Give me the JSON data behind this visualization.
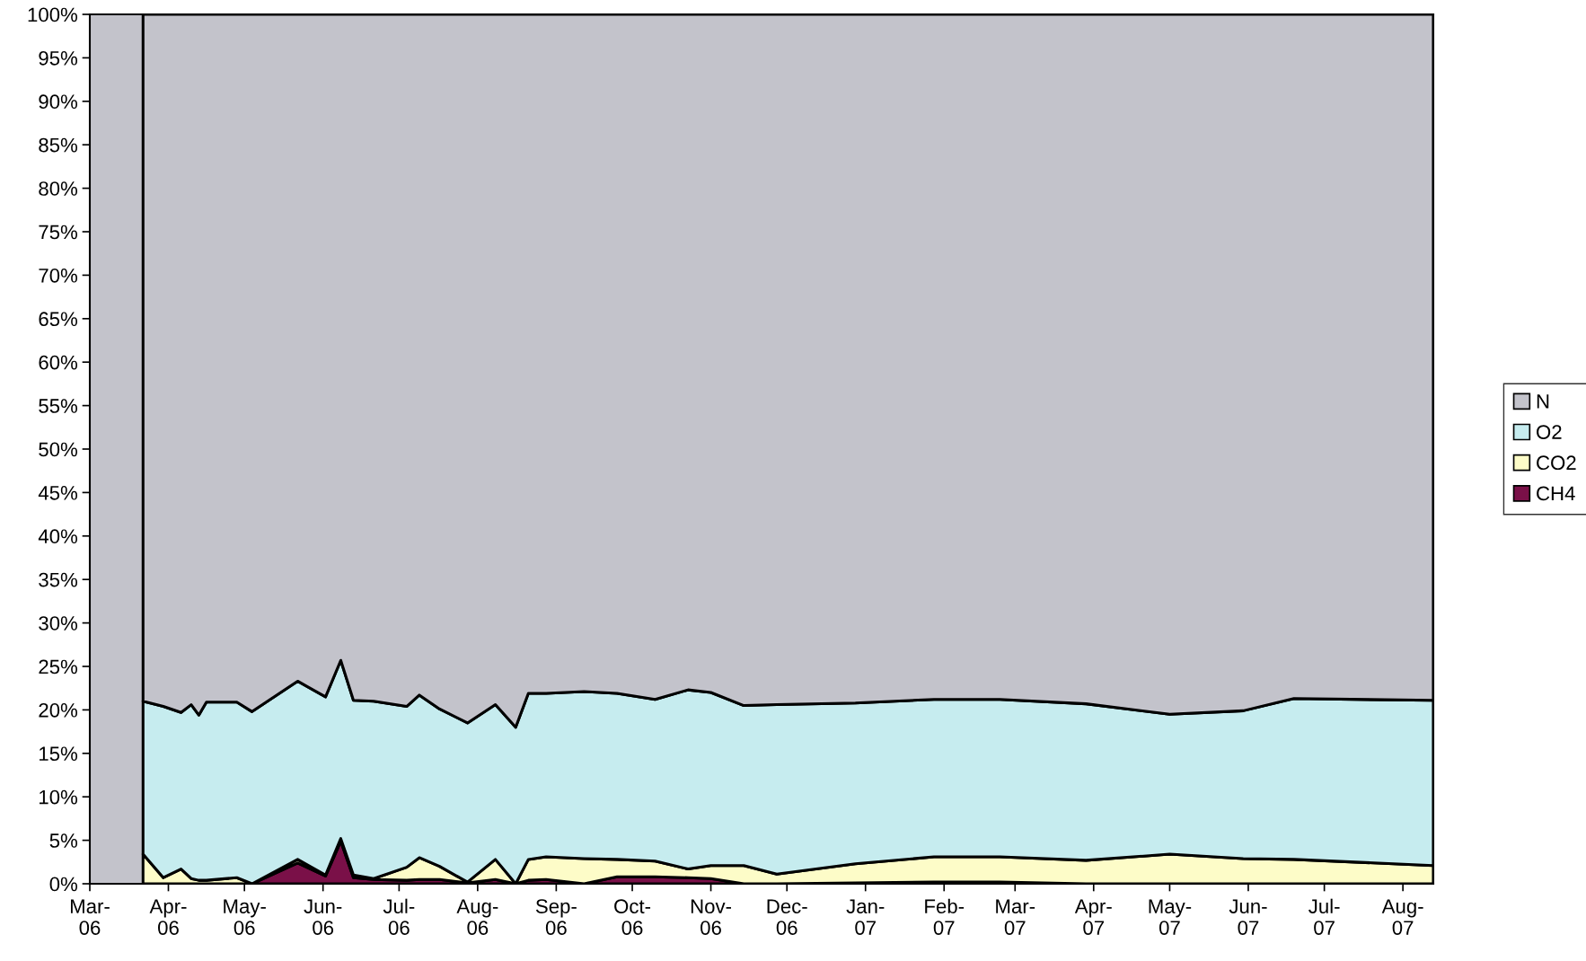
{
  "chart_data": {
    "type": "area",
    "stacked": true,
    "legend": "right",
    "grid": false,
    "x": [
      "2006-03-22",
      "2006-03-30",
      "2006-04-06",
      "2006-04-10",
      "2006-04-13",
      "2006-04-16",
      "2006-04-28",
      "2006-05-04",
      "2006-05-22",
      "2006-06-02",
      "2006-06-08",
      "2006-06-13",
      "2006-06-21",
      "2006-07-04",
      "2006-07-09",
      "2006-07-17",
      "2006-07-28",
      "2006-08-08",
      "2006-08-16",
      "2006-08-21",
      "2006-08-28",
      "2006-09-12",
      "2006-09-25",
      "2006-10-10",
      "2006-10-23",
      "2006-11-01",
      "2006-11-14",
      "2006-11-27",
      "2006-12-28",
      "2007-01-28",
      "2007-02-23",
      "2007-03-29",
      "2007-05-01",
      "2007-05-30",
      "2007-06-19",
      "2007-08-13"
    ],
    "series": [
      {
        "name": "CH4",
        "color": "#7a1048",
        "values": [
          0,
          0,
          0,
          0,
          0,
          0,
          0,
          0,
          2.4,
          0.9,
          4.9,
          0.7,
          0.5,
          0.4,
          0.5,
          0.5,
          0.1,
          0.5,
          0,
          0.4,
          0.5,
          0,
          0.8,
          0.8,
          0.7,
          0.6,
          0,
          0,
          0.1,
          0.2,
          0.2,
          0,
          0,
          0,
          0,
          0
        ]
      },
      {
        "name": "CO2",
        "color": "#fdfcc8",
        "values": [
          3.4,
          0.7,
          1.7,
          0.6,
          0.4,
          0.4,
          0.7,
          0,
          0.4,
          0.1,
          0.3,
          0.3,
          0.1,
          1.5,
          2.5,
          1.5,
          0.1,
          2.3,
          0,
          2.4,
          2.6,
          2.9,
          2.0,
          1.8,
          1.0,
          1.5,
          2.1,
          1.1,
          2.2,
          2.9,
          2.9,
          2.7,
          3.4,
          2.9,
          2.8,
          2.1
        ]
      },
      {
        "name": "O2",
        "color": "#c6ecef",
        "values": [
          17.6,
          19.7,
          18.0,
          20.0,
          19.0,
          20.5,
          20.2,
          19.8,
          20.5,
          20.5,
          20.5,
          20.1,
          20.4,
          18.5,
          18.7,
          18.1,
          18.3,
          17.8,
          18.0,
          19.1,
          18.8,
          19.2,
          19.1,
          18.6,
          20.6,
          19.9,
          18.4,
          19.5,
          18.5,
          18.1,
          18.1,
          18.0,
          16.1,
          17.0,
          18.5,
          19.0
        ]
      },
      {
        "name": "N",
        "color": "#c3c3cb",
        "values": [
          79.0,
          79.6,
          80.3,
          79.4,
          80.6,
          79.1,
          79.1,
          80.2,
          76.7,
          78.5,
          74.3,
          78.9,
          79.0,
          79.6,
          78.3,
          79.9,
          81.5,
          79.4,
          82.0,
          78.1,
          78.1,
          77.9,
          78.1,
          78.8,
          77.7,
          78.0,
          79.5,
          79.4,
          79.2,
          78.8,
          78.8,
          79.3,
          80.5,
          80.1,
          78.7,
          78.9
        ]
      }
    ],
    "xlim": [
      "2006-03-01",
      "2007-08-13"
    ],
    "xticks": [
      {
        "value": "2006-03-01",
        "label": "Mar-\n06"
      },
      {
        "value": "2006-04-01",
        "label": "Apr-\n06"
      },
      {
        "value": "2006-05-01",
        "label": "May-\n06"
      },
      {
        "value": "2006-06-01",
        "label": "Jun-\n06"
      },
      {
        "value": "2006-07-01",
        "label": "Jul-\n06"
      },
      {
        "value": "2006-08-01",
        "label": "Aug-\n06"
      },
      {
        "value": "2006-09-01",
        "label": "Sep-\n06"
      },
      {
        "value": "2006-10-01",
        "label": "Oct-\n06"
      },
      {
        "value": "2006-11-01",
        "label": "Nov-\n06"
      },
      {
        "value": "2006-12-01",
        "label": "Dec-\n06"
      },
      {
        "value": "2007-01-01",
        "label": "Jan-\n07"
      },
      {
        "value": "2007-02-01",
        "label": "Feb-\n07"
      },
      {
        "value": "2007-03-01",
        "label": "Mar-\n07"
      },
      {
        "value": "2007-04-01",
        "label": "Apr-\n07"
      },
      {
        "value": "2007-05-01",
        "label": "May-\n07"
      },
      {
        "value": "2007-06-01",
        "label": "Jun-\n07"
      },
      {
        "value": "2007-07-01",
        "label": "Jul-\n07"
      },
      {
        "value": "2007-08-01",
        "label": "Aug-\n07"
      }
    ],
    "ylim": [
      0,
      100
    ],
    "yticks": [
      {
        "value": 0,
        "label": "0%"
      },
      {
        "value": 5,
        "label": "5%"
      },
      {
        "value": 10,
        "label": "10%"
      },
      {
        "value": 15,
        "label": "15%"
      },
      {
        "value": 20,
        "label": "20%"
      },
      {
        "value": 25,
        "label": "25%"
      },
      {
        "value": 30,
        "label": "30%"
      },
      {
        "value": 35,
        "label": "35%"
      },
      {
        "value": 40,
        "label": "40%"
      },
      {
        "value": 45,
        "label": "45%"
      },
      {
        "value": 50,
        "label": "50%"
      },
      {
        "value": 55,
        "label": "55%"
      },
      {
        "value": 60,
        "label": "60%"
      },
      {
        "value": 65,
        "label": "65%"
      },
      {
        "value": 70,
        "label": "70%"
      },
      {
        "value": 75,
        "label": "75%"
      },
      {
        "value": 80,
        "label": "80%"
      },
      {
        "value": 85,
        "label": "85%"
      },
      {
        "value": 90,
        "label": "90%"
      },
      {
        "value": 95,
        "label": "95%"
      },
      {
        "value": 100,
        "label": "100%"
      }
    ]
  }
}
